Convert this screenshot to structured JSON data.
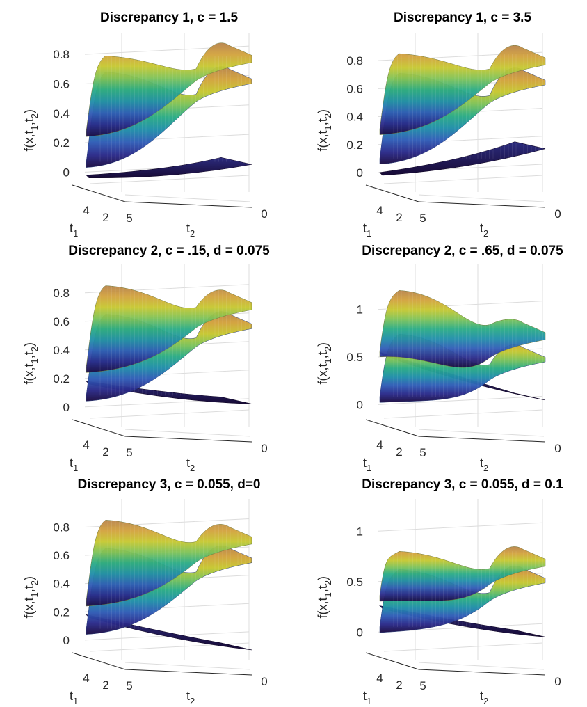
{
  "chart_data": [
    {
      "type": "surface",
      "title": "Discrepancy 1, c = 1.5",
      "zlabel": "f(x,t1,t2)",
      "xlabel": "t1",
      "ylabel": "t2",
      "t1_ticks": [
        "4",
        "2"
      ],
      "t2_ticks": [
        "5",
        "0"
      ],
      "z_ticks": [
        "0",
        "0.2",
        "0.4",
        "0.6",
        "0.8"
      ],
      "zlim": [
        -0.05,
        0.9
      ],
      "surfaces": [
        {
          "role": "upper",
          "left_near": 0.28,
          "left_far": 0.79,
          "right_peak": 0.86
        },
        {
          "role": "middle",
          "left_near": 0.07,
          "left_far": 0.68,
          "right_peak": 0.7
        },
        {
          "role": "discrepancy",
          "left_near": -0.02,
          "left_far": -0.01,
          "right_peak": 0.1
        }
      ]
    },
    {
      "type": "surface",
      "title": "Discrepancy 1, c = 3.5",
      "zlabel": "f(x,t1,t2)",
      "xlabel": "t1",
      "ylabel": "t2",
      "t1_ticks": [
        "4",
        "2"
      ],
      "t2_ticks": [
        "5",
        "0"
      ],
      "z_ticks": [
        "0",
        "0.2",
        "0.4",
        "0.6",
        "0.8"
      ],
      "zlim": [
        -0.05,
        0.95
      ],
      "surfaces": [
        {
          "role": "upper",
          "left_near": 0.31,
          "left_far": 0.85,
          "right_peak": 0.89
        },
        {
          "role": "middle",
          "left_near": 0.1,
          "left_far": 0.71,
          "right_peak": 0.73
        },
        {
          "role": "discrepancy",
          "left_near": 0.0,
          "left_far": 0.07,
          "right_peak": 0.22
        }
      ]
    },
    {
      "type": "surface",
      "title": "Discrepancy 2, c = .15, d = 0.075",
      "zlabel": "f(x,t1,t2)",
      "xlabel": "t1",
      "ylabel": "t2",
      "t1_ticks": [
        "4",
        "2"
      ],
      "t2_ticks": [
        "5",
        "0"
      ],
      "z_ticks": [
        "0",
        "0.2",
        "0.4",
        "0.6",
        "0.8"
      ],
      "zlim": [
        -0.05,
        0.95
      ],
      "surfaces": [
        {
          "role": "upper",
          "left_near": 0.28,
          "left_far": 0.85,
          "right_peak": 0.8
        },
        {
          "role": "middle",
          "left_near": 0.08,
          "left_far": 0.65,
          "right_peak": 0.65
        },
        {
          "role": "discrepancy",
          "left_near": 0.18,
          "left_far": 0.18,
          "right_peak": 0.07
        }
      ]
    },
    {
      "type": "surface",
      "title": "Discrepancy 2, c = .65, d = 0.075",
      "zlabel": "f(x,t1,t2)",
      "xlabel": "t1",
      "ylabel": "t2",
      "t1_ticks": [
        "4",
        "2"
      ],
      "t2_ticks": [
        "5",
        "0"
      ],
      "z_ticks": [
        "0",
        "0.5",
        "1"
      ],
      "zlim": [
        -0.1,
        1.4
      ],
      "surfaces": [
        {
          "role": "upper",
          "left_near": 0.56,
          "left_far": 1.2,
          "right_peak": 0.86
        },
        {
          "role": "middle",
          "left_near": 0.08,
          "left_far": 0.74,
          "right_peak": 0.6
        },
        {
          "role": "discrepancy",
          "left_near": 0.55,
          "left_far": 0.52,
          "right_peak": 0.12
        }
      ]
    },
    {
      "type": "surface",
      "title": "Discrepancy 3, c = 0.055, d=0",
      "zlabel": "f(x,t1,t2)",
      "xlabel": "t1",
      "ylabel": "t2",
      "t1_ticks": [
        "4",
        "2"
      ],
      "t2_ticks": [
        "5",
        "0"
      ],
      "z_ticks": [
        "0",
        "0.2",
        "0.4",
        "0.6",
        "0.8"
      ],
      "zlim": [
        -0.05,
        0.95
      ],
      "surfaces": [
        {
          "role": "upper",
          "left_near": 0.28,
          "left_far": 0.85,
          "right_peak": 0.8
        },
        {
          "role": "middle",
          "left_near": 0.08,
          "left_far": 0.65,
          "right_peak": 0.65
        },
        {
          "role": "discrepancy",
          "left_near": 0.18,
          "left_far": 0.17,
          "right_peak": -0.02
        }
      ]
    },
    {
      "type": "surface",
      "title": "Discrepancy 3, c = 0.055, d = 0.1",
      "zlabel": "f(x,t1,t2)",
      "xlabel": "t1",
      "ylabel": "t2",
      "t1_ticks": [
        "4",
        "2"
      ],
      "t2_ticks": [
        "5",
        "0"
      ],
      "z_ticks": [
        "0",
        "0.5",
        "1"
      ],
      "zlim": [
        -0.15,
        1.25
      ],
      "surfaces": [
        {
          "role": "upper",
          "left_near": 0.36,
          "left_far": 0.8,
          "right_peak": 0.82
        },
        {
          "role": "middle",
          "left_near": 0.05,
          "left_far": 0.62,
          "right_peak": 0.63
        },
        {
          "role": "discrepancy",
          "left_near": 0.26,
          "left_far": 0.26,
          "right_peak": 0.02
        }
      ]
    }
  ],
  "colors": {
    "colormap": [
      "#1b0c41",
      "#2a2a8a",
      "#2f5cb6",
      "#1f8ea8",
      "#29ab84",
      "#7dc257",
      "#c6c72f",
      "#d2a23c",
      "#b8834a"
    ],
    "grid": "#dcdcdc",
    "axis": "#262626"
  }
}
